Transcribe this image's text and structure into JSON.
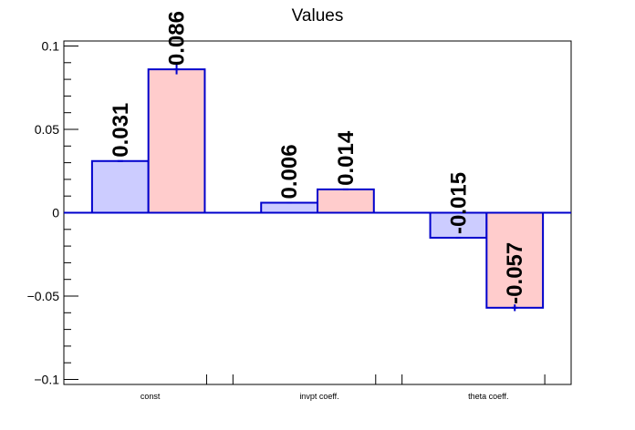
{
  "chart_data": {
    "type": "bar",
    "title": "Values",
    "categories": [
      "const",
      "invpt coeff.",
      "theta coeff."
    ],
    "series": [
      {
        "values": [
          0.031,
          0.006,
          -0.015
        ],
        "errors": [
          0.0,
          0.0,
          0.0
        ],
        "labels": [
          "0.031",
          "0.006",
          "-0.015"
        ],
        "color": "#ccccff"
      },
      {
        "values": [
          0.086,
          0.014,
          -0.057
        ],
        "errors": [
          0.003,
          0.0,
          0.002
        ],
        "labels": [
          "0.086",
          "0.014",
          "-0.057"
        ],
        "color": "#ffcccc"
      }
    ],
    "edge_color": "#0000cc",
    "ylim": [
      -0.103,
      0.103
    ],
    "yticks": [
      -0.1,
      -0.05,
      0,
      0.05,
      0.1
    ],
    "ytick_labels": [
      "−0.1",
      "−0.05",
      "0",
      "0.05",
      "0.1"
    ],
    "grid": false,
    "legend": "none"
  }
}
